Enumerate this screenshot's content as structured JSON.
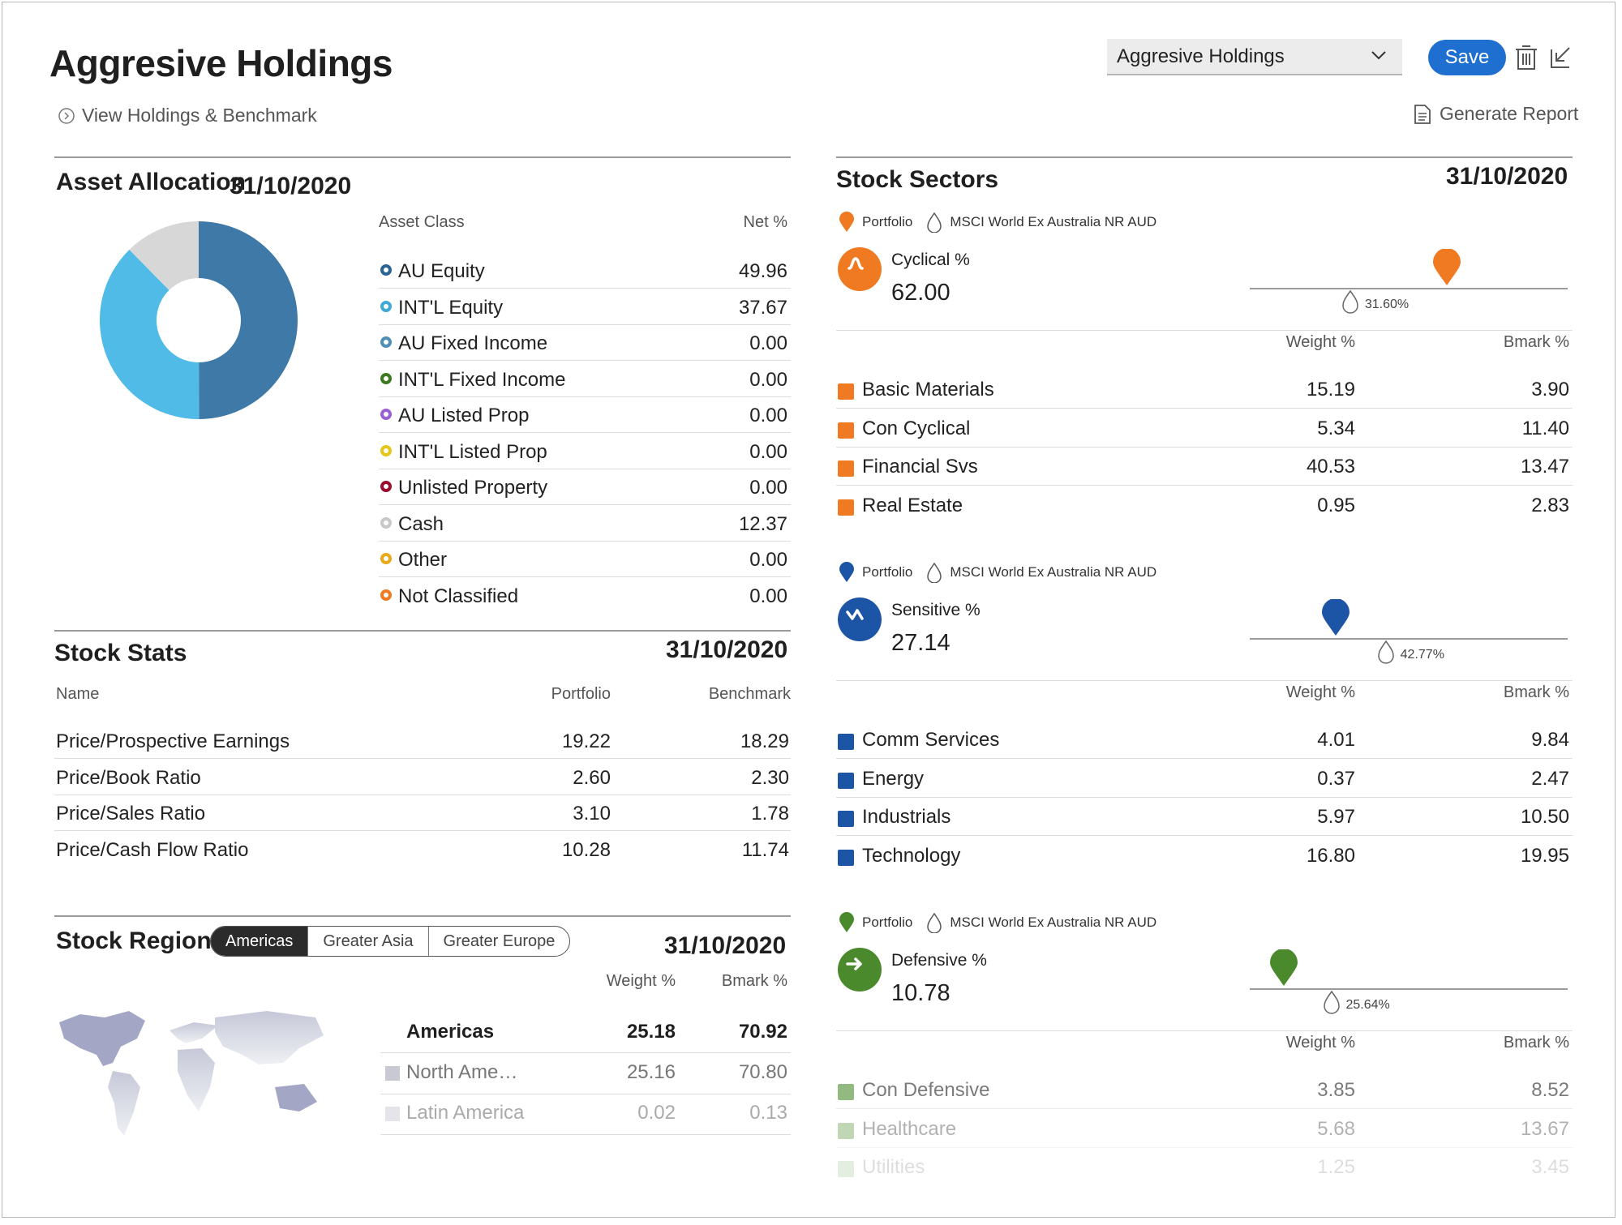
{
  "header": {
    "title": "Aggresive Holdings",
    "view_link": "View Holdings & Benchmark",
    "dropdown_value": "Aggresive Holdings",
    "save_label": "Save",
    "generate_report": "Generate Report"
  },
  "asset_allocation": {
    "title": "Asset Allocation",
    "date": "31/10/2020",
    "col_class": "Asset Class",
    "col_net": "Net %",
    "rows": [
      {
        "label": "AU Equity",
        "value": "49.96",
        "color": "#2a6496"
      },
      {
        "label": "INT'L Equity",
        "value": "37.67",
        "color": "#3fa9d8"
      },
      {
        "label": "AU Fixed Income",
        "value": "0.00",
        "color": "#4f8fb8"
      },
      {
        "label": "INT'L Fixed Income",
        "value": "0.00",
        "color": "#3d7a1f"
      },
      {
        "label": "AU Listed Prop",
        "value": "0.00",
        "color": "#9b5fd4"
      },
      {
        "label": "INT'L Listed Prop",
        "value": "0.00",
        "color": "#e6c619"
      },
      {
        "label": "Unlisted Property",
        "value": "0.00",
        "color": "#9d0b2f"
      },
      {
        "label": "Cash",
        "value": "12.37",
        "color": "#c8c8c8"
      },
      {
        "label": "Other",
        "value": "0.00",
        "color": "#e8a91a"
      },
      {
        "label": "Not Classified",
        "value": "0.00",
        "color": "#ef7a22"
      }
    ],
    "donut": [
      {
        "name": "AU Equity",
        "value": 49.96,
        "color": "#3f79a8"
      },
      {
        "name": "INT'L Equity",
        "value": 37.67,
        "color": "#4fbbe6"
      },
      {
        "name": "Cash",
        "value": 12.37,
        "color": "#d7d7d7"
      }
    ]
  },
  "stock_stats": {
    "title": "Stock Stats",
    "date": "31/10/2020",
    "col_name": "Name",
    "col_portfolio": "Portfolio",
    "col_benchmark": "Benchmark",
    "rows": [
      {
        "name": "Price/Prospective Earnings",
        "portfolio": "19.22",
        "benchmark": "18.29"
      },
      {
        "name": "Price/Book Ratio",
        "portfolio": "2.60",
        "benchmark": "2.30"
      },
      {
        "name": "Price/Sales Ratio",
        "portfolio": "3.10",
        "benchmark": "1.78"
      },
      {
        "name": "Price/Cash Flow Ratio",
        "portfolio": "10.28",
        "benchmark": "11.74"
      }
    ]
  },
  "stock_regions": {
    "title": "Stock Regions",
    "date": "31/10/2020",
    "tabs": [
      "Americas",
      "Greater Asia",
      "Greater Europe"
    ],
    "col_weight": "Weight %",
    "col_bmark": "Bmark %",
    "group": {
      "label": "Americas",
      "weight": "25.18",
      "bmark": "70.92"
    },
    "rows": [
      {
        "label": "North Ame…",
        "weight": "25.16",
        "bmark": "70.80"
      },
      {
        "label": "Latin America",
        "weight": "0.02",
        "bmark": "0.13"
      }
    ]
  },
  "stock_sectors": {
    "title": "Stock Sectors",
    "date": "31/10/2020",
    "legend_portfolio": "Portfolio",
    "legend_benchmark": "MSCI World Ex Australia NR AUD",
    "col_weight": "Weight %",
    "col_bmark": "Bmark %",
    "groups": [
      {
        "label": "Cyclical %",
        "value": "62.00",
        "bench": "31.60%",
        "portfolio_pct": 62.0,
        "bench_pct": 31.6,
        "color": "#ef7a22",
        "rows": [
          {
            "label": "Basic Materials",
            "weight": "15.19",
            "bmark": "3.90"
          },
          {
            "label": "Con Cyclical",
            "weight": "5.34",
            "bmark": "11.40"
          },
          {
            "label": "Financial Svs",
            "weight": "40.53",
            "bmark": "13.47"
          },
          {
            "label": "Real Estate",
            "weight": "0.95",
            "bmark": "2.83"
          }
        ]
      },
      {
        "label": "Sensitive %",
        "value": "27.14",
        "bench": "42.77%",
        "portfolio_pct": 27.14,
        "bench_pct": 42.77,
        "color": "#1d55a6",
        "rows": [
          {
            "label": "Comm Services",
            "weight": "4.01",
            "bmark": "9.84"
          },
          {
            "label": "Energy",
            "weight": "0.37",
            "bmark": "2.47"
          },
          {
            "label": "Industrials",
            "weight": "5.97",
            "bmark": "10.50"
          },
          {
            "label": "Technology",
            "weight": "16.80",
            "bmark": "19.95"
          }
        ]
      },
      {
        "label": "Defensive %",
        "value": "10.78",
        "bench": "25.64%",
        "portfolio_pct": 10.78,
        "bench_pct": 25.64,
        "color": "#4a8a2c",
        "rows": [
          {
            "label": "Con Defensive",
            "weight": "3.85",
            "bmark": "8.52"
          },
          {
            "label": "Healthcare",
            "weight": "5.68",
            "bmark": "13.67"
          },
          {
            "label": "Utilities",
            "weight": "1.25",
            "bmark": "3.45"
          }
        ]
      }
    ]
  }
}
